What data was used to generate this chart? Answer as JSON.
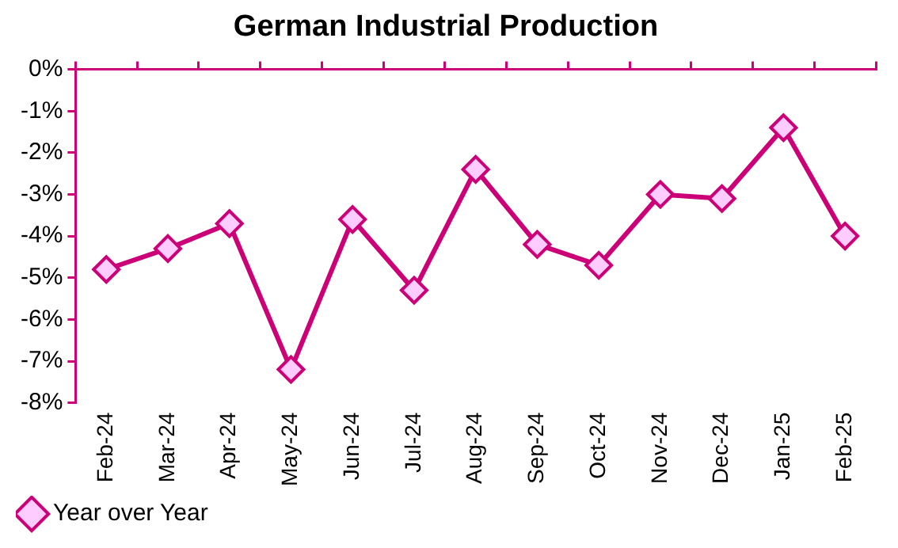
{
  "chart_data": {
    "type": "line",
    "title": "German Industrial Production",
    "categories": [
      "Feb-24",
      "Mar-24",
      "Apr-24",
      "May-24",
      "Jun-24",
      "Jul-24",
      "Aug-24",
      "Sep-24",
      "Oct-24",
      "Nov-24",
      "Dec-24",
      "Jan-25",
      "Feb-25"
    ],
    "series": [
      {
        "name": "Year over Year",
        "color": "#cc0077",
        "values": [
          -4.8,
          -4.3,
          -3.7,
          -7.2,
          -3.6,
          -5.3,
          -2.4,
          -4.2,
          -4.7,
          -3.0,
          -3.1,
          -1.4,
          -4.0
        ]
      }
    ],
    "ylim": [
      -8,
      0
    ],
    "yticks": [
      {
        "value": 0,
        "label": "0%"
      },
      {
        "value": -1,
        "label": "-1%"
      },
      {
        "value": -2,
        "label": "-2%"
      },
      {
        "value": -3,
        "label": "-3%"
      },
      {
        "value": -4,
        "label": "-4%"
      },
      {
        "value": -5,
        "label": "-5%"
      },
      {
        "value": -6,
        "label": "-6%"
      },
      {
        "value": -7,
        "label": "-7%"
      },
      {
        "value": -8,
        "label": "-8%"
      }
    ],
    "grid": false,
    "legend": "bottom left",
    "marker": "diamond",
    "line_style": "solid"
  }
}
